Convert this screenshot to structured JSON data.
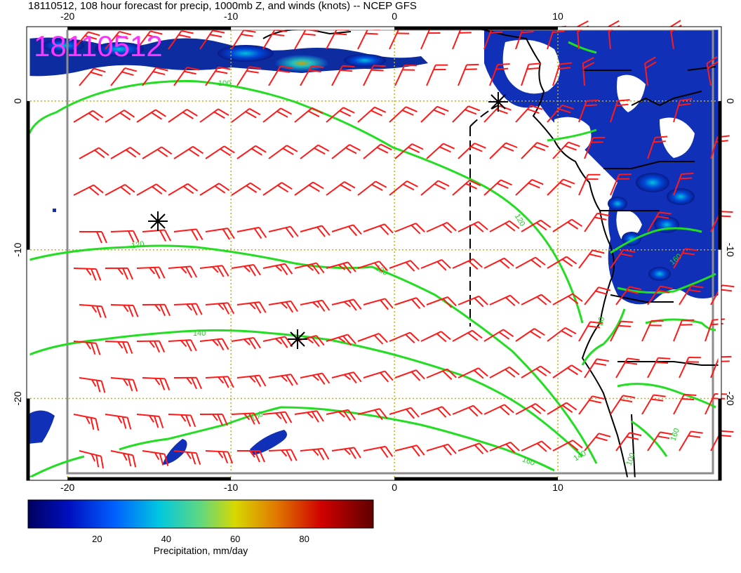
{
  "title": "18110512, 108 hour forecast for precip, 1000mb Z, and winds (knots) -- NCEP GFS",
  "stamp": "18110512",
  "map": {
    "lon_range": [
      -22.5,
      20
    ],
    "lat_range": [
      -25.5,
      5
    ],
    "lon_ticks_top": [
      "-20",
      "-10",
      "0",
      "10"
    ],
    "lon_ticks_bottom": [
      "-20",
      "-10",
      "0",
      "10"
    ],
    "lat_ticks_left": [
      "0",
      "-10",
      "-20"
    ],
    "lat_ticks_right": [
      "0",
      "-10",
      "-20"
    ],
    "contour_labels": [
      "100",
      "120",
      "120",
      "140",
      "160",
      "160",
      "140",
      "160",
      "100",
      "120",
      "80",
      "160"
    ],
    "colors": {
      "contour": "#22dd22",
      "wind_barb": "#ff1a1a",
      "coastline": "#000000",
      "grid": "#c8b400",
      "frame": "#8c8c8c",
      "stamp": "#ff33ff"
    },
    "markers": [
      "asterisk",
      "asterisk",
      "asterisk"
    ]
  },
  "colorbar": {
    "ticks": [
      "20",
      "40",
      "60",
      "80"
    ],
    "label": "Precipitation, mm/day",
    "range": [
      0,
      100
    ],
    "colors": [
      "#00007f",
      "#0000ff",
      "#0080ff",
      "#00ffff",
      "#80ff80",
      "#ffff00",
      "#ff8000",
      "#ff0000",
      "#7f0000"
    ]
  }
}
